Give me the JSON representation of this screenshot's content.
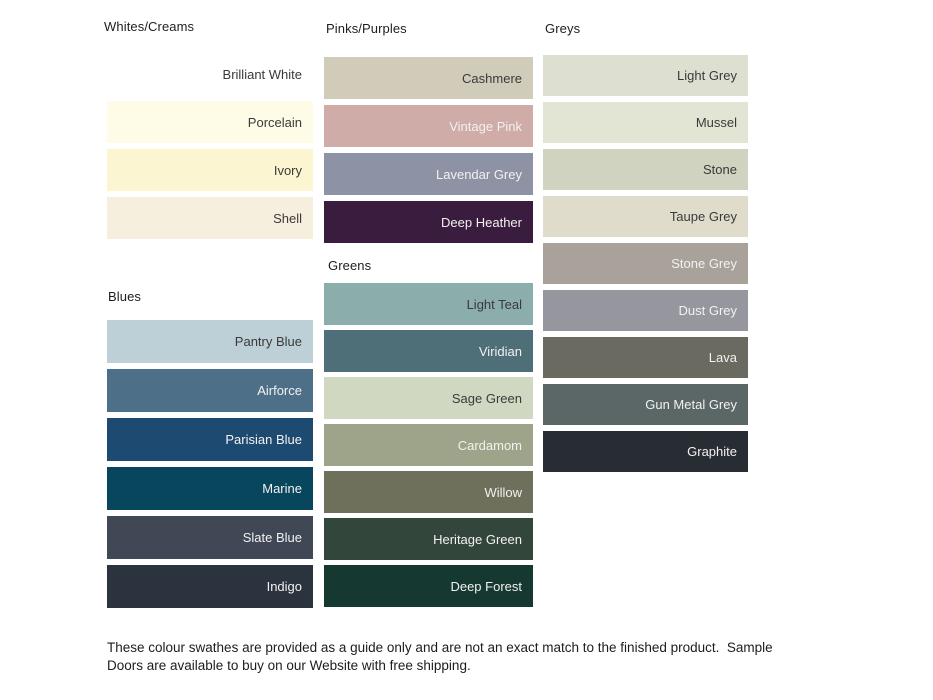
{
  "page": {
    "background": "#ffffff"
  },
  "groups": {
    "whites": {
      "title": "Whites/Creams",
      "swatches": [
        {
          "name": "Brilliant White",
          "color": "#ffffff",
          "text": "dark"
        },
        {
          "name": "Porcelain",
          "color": "#fefce7",
          "text": "dark"
        },
        {
          "name": "Ivory",
          "color": "#fbf6d1",
          "text": "dark"
        },
        {
          "name": "Shell",
          "color": "#f6efde",
          "text": "dark"
        }
      ]
    },
    "blues": {
      "title": "Blues",
      "swatches": [
        {
          "name": "Pantry Blue",
          "color": "#bdd0d7",
          "text": "dark"
        },
        {
          "name": "Airforce",
          "color": "#4e6f88",
          "text": "light"
        },
        {
          "name": "Parisian Blue",
          "color": "#1d4a70",
          "text": "light"
        },
        {
          "name": "Marine",
          "color": "#07465c",
          "text": "light"
        },
        {
          "name": "Slate Blue",
          "color": "#404855",
          "text": "light"
        },
        {
          "name": "Indigo",
          "color": "#2b333f",
          "text": "light"
        }
      ]
    },
    "pinks": {
      "title": "Pinks/Purples",
      "swatches": [
        {
          "name": "Cashmere",
          "color": "#d1cbba",
          "text": "dark"
        },
        {
          "name": "Vintage Pink",
          "color": "#cfaca8",
          "text": "light"
        },
        {
          "name": "Lavendar Grey",
          "color": "#8d92a5",
          "text": "light"
        },
        {
          "name": "Deep Heather",
          "color": "#3a1c3e",
          "text": "light"
        }
      ]
    },
    "greens": {
      "title": "Greens",
      "swatches": [
        {
          "name": "Light Teal",
          "color": "#8badac",
          "text": "dark"
        },
        {
          "name": "Viridian",
          "color": "#4e6e78",
          "text": "light"
        },
        {
          "name": "Sage Green",
          "color": "#d1d8c2",
          "text": "dark"
        },
        {
          "name": "Cardamom",
          "color": "#9ea489",
          "text": "light"
        },
        {
          "name": "Willow",
          "color": "#6f705c",
          "text": "light"
        },
        {
          "name": "Heritage Green",
          "color": "#33463c",
          "text": "light"
        },
        {
          "name": "Deep Forest",
          "color": "#153831",
          "text": "light"
        }
      ]
    },
    "greys": {
      "title": "Greys",
      "swatches": [
        {
          "name": "Light Grey",
          "color": "#dddfd1",
          "text": "dark"
        },
        {
          "name": "Mussel",
          "color": "#e3e5d4",
          "text": "dark"
        },
        {
          "name": "Stone",
          "color": "#d0d3c0",
          "text": "dark"
        },
        {
          "name": "Taupe Grey",
          "color": "#e0dccb",
          "text": "dark"
        },
        {
          "name": "Stone Grey",
          "color": "#a8a29a",
          "text": "light"
        },
        {
          "name": "Dust Grey",
          "color": "#95969e",
          "text": "light"
        },
        {
          "name": "Lava",
          "color": "#6a6a61",
          "text": "light"
        },
        {
          "name": "Gun Metal Grey",
          "color": "#5a6766",
          "text": "light"
        },
        {
          "name": "Graphite",
          "color": "#282d33",
          "text": "light"
        }
      ]
    }
  },
  "footer": {
    "lines": [
      "These colour swathes are provided as a guide only and are not an exact match to the finished product.  Sample",
      "Doors are available to buy on our Website with free shipping."
    ]
  }
}
